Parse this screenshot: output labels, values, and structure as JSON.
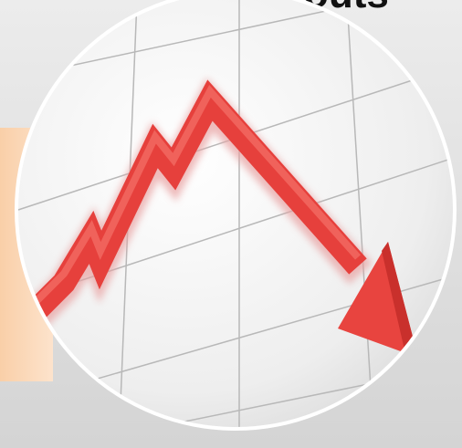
{
  "title": "outs"
}
